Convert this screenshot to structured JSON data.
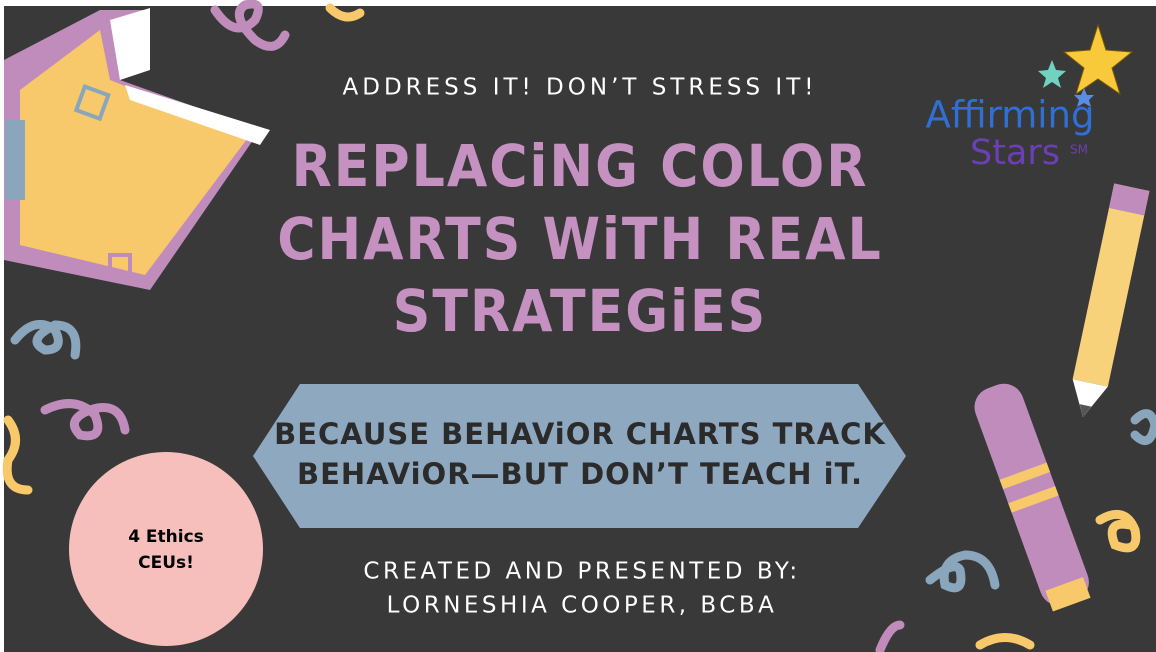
{
  "kicker": "ADDRESS IT! DON’T STRESS IT!",
  "title": {
    "lines": [
      "REPLACiNG COLOR",
      "CHARTS WiTH REAL",
      "STRATEGiES"
    ]
  },
  "banner": {
    "lines": [
      "BECAUSE BEHAViOR CHARTS TRACK",
      "BEHAViOR—BUT DON’T TEACH iT."
    ]
  },
  "badge": {
    "lines": [
      "4 Ethics",
      "CEUs!"
    ]
  },
  "credits": {
    "lines": [
      "CREATED AND PRESENTED BY:",
      "LORNESHIA COOPER, BCBA"
    ]
  },
  "logo": {
    "word1": "Affirming",
    "word2": "Stars",
    "mark": "SM"
  }
}
